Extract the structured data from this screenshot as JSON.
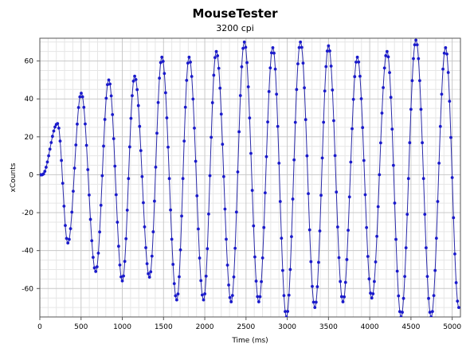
{
  "chart_data": {
    "type": "scatter",
    "title": "MouseTester",
    "subtitle": "3200 cpi",
    "xlabel": "Time (ms)",
    "ylabel": "xCounts",
    "xlim": [
      0,
      5100
    ],
    "ylim": [
      -75,
      72
    ],
    "x_ticks": [
      0,
      500,
      1000,
      1500,
      2000,
      2500,
      3000,
      3500,
      4000,
      4500,
      5000
    ],
    "y_ticks": [
      -60,
      -40,
      -20,
      0,
      20,
      40,
      60
    ],
    "grid": true,
    "legend": "none",
    "colors": {
      "points": "#1a1acc",
      "line": "#2a2aa8",
      "grid_major": "#c8c8c8",
      "grid_minor": "#e6e6e6"
    },
    "series": [
      {
        "x": [
          0,
          30,
          215,
          340,
          502,
          678,
          836,
          1000,
          1150,
          1330,
          1480,
          1660,
          1810,
          1985,
          2140,
          2320,
          2480,
          2655,
          2825,
          2990,
          3160,
          3335,
          3500,
          3675,
          3850,
          4025,
          4210,
          4380,
          4560,
          4745,
          4920,
          5080
        ],
        "y": [
          0,
          0,
          27,
          -36,
          43,
          -51,
          50,
          -56,
          52,
          -54,
          62,
          -66,
          62,
          -66,
          65,
          -67,
          70,
          -67,
          67,
          -75,
          70,
          -70,
          68,
          -67,
          62,
          -65,
          65,
          -75,
          71,
          -75,
          67,
          -70
        ]
      }
    ]
  }
}
